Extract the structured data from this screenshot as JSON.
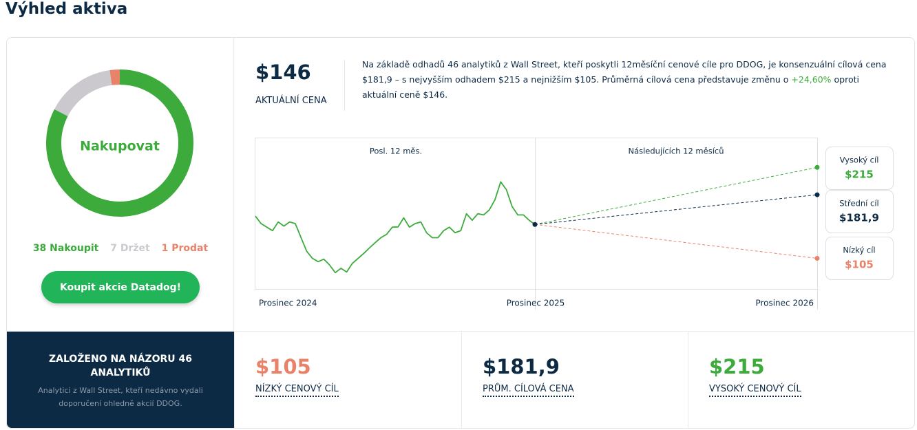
{
  "title": "Výhled aktiva",
  "consensus": {
    "rating": "Nakupovat",
    "ratings": [
      {
        "label": "38 Nakoupit",
        "count": 38,
        "color": "#3cab3b"
      },
      {
        "label": "7 Držet",
        "count": 7,
        "color": "#cbc9cd"
      },
      {
        "label": "1 Prodat",
        "count": 1,
        "color": "#e8836a"
      }
    ],
    "button": "Koupit akcie Datadog!"
  },
  "current": {
    "price_label": "$146",
    "price": 146,
    "caption": "AKTUÁLNÍ CENA"
  },
  "description": {
    "before": "Na základě odhadů 46 analytiků z Wall Street, kteří poskytli 12měsíční cenové cíle pro DDOG, je konsenzuální cílová cena $181,9 – s nejvyšším odhadem $215 a nejnižším $105. Průměrná cílová cena představuje změnu o ",
    "change": "+24,60%",
    "after": " oproti aktuální ceně $146."
  },
  "price_chart": {
    "type": "line",
    "past_label": "Posl. 12 měs.",
    "future_label": "Následujících 12 měsíců",
    "x_labels": [
      "Prosinec 2024",
      "Prosinec 2025",
      "Prosinec 2026"
    ],
    "ylim": [
      68,
      251
    ],
    "color": "#3cab3b",
    "values": [
      156,
      147,
      142.7,
      138.5,
      149,
      144,
      149,
      147,
      130,
      113.5,
      105,
      101,
      104,
      97,
      87.7,
      93,
      88.5,
      99,
      105,
      111,
      117.7,
      124,
      130,
      134,
      142.7,
      143,
      154,
      142.7,
      147,
      149,
      136,
      130,
      130,
      138.5,
      142.7,
      136,
      138.5,
      159,
      151,
      159,
      157.5,
      163.5,
      176,
      197.5,
      188,
      167.7,
      157.5,
      157.5,
      151,
      146
    ]
  },
  "targets": [
    {
      "name": "Vysoký cíl",
      "value": 215,
      "value_label": "$215",
      "color": "#3cab3b",
      "card_label": "VYSOKÝ CENOVÝ CÍL"
    },
    {
      "name": "Střední cíl",
      "value": 181.9,
      "value_label": "$181,9",
      "color": "#0d2a45",
      "card_label": "PRŮM. CÍLOVÁ CENA"
    },
    {
      "name": "Nízký cíl",
      "value": 105,
      "value_label": "$105",
      "color": "#e8836a",
      "card_label": "NÍZKÝ CENOVÝ CÍL"
    }
  ],
  "footer": {
    "heading": "ZALOŽENO NA NÁZORU 46 ANALYTIKŮ",
    "text": "Analytici z Wall Street, kteří nedávno vydali doporučení ohledně akcií DDOG."
  }
}
